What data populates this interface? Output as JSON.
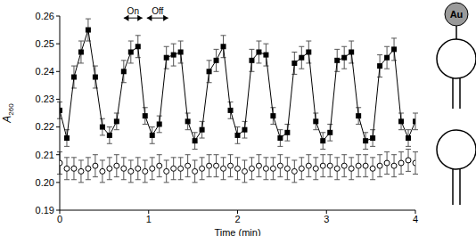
{
  "chart_data": {
    "type": "line",
    "ylabel": "A260",
    "xlabel": "Time (min)",
    "xlim": [
      0,
      4
    ],
    "xticks": [
      0,
      1,
      2,
      3,
      4
    ],
    "ylim": [
      0.19,
      0.26
    ],
    "yticks": [
      0.19,
      {
        "value": 0.2,
        "label": "0.20"
      },
      0.21,
      0.22,
      0.23,
      0.24,
      0.25,
      0.26
    ],
    "x": [
      0,
      0.08,
      0.16,
      0.24,
      0.32,
      0.4,
      0.48,
      0.56,
      0.64,
      0.72,
      0.8,
      0.88,
      0.96,
      1.04,
      1.12,
      1.2,
      1.28,
      1.36,
      1.44,
      1.52,
      1.6,
      1.68,
      1.76,
      1.84,
      1.92,
      2,
      2.08,
      2.16,
      2.24,
      2.32,
      2.4,
      2.48,
      2.56,
      2.64,
      2.72,
      2.8,
      2.88,
      2.96,
      3.04,
      3.12,
      3.2,
      3.28,
      3.36,
      3.44,
      3.52,
      3.6,
      3.68,
      3.76,
      3.84,
      3.92,
      4
    ],
    "series": [
      {
        "color": "#000000",
        "marker": "square",
        "line_style": "solid",
        "values": [
          0.226,
          0.216,
          0.238,
          0.247,
          0.255,
          0.238,
          0.22,
          0.217,
          0.222,
          0.24,
          0.247,
          0.249,
          0.224,
          0.217,
          0.221,
          0.245,
          0.246,
          0.247,
          0.222,
          0.215,
          0.219,
          0.24,
          0.244,
          0.249,
          0.226,
          0.217,
          0.219,
          0.244,
          0.247,
          0.246,
          0.224,
          0.216,
          0.218,
          0.243,
          0.245,
          0.247,
          0.222,
          0.215,
          0.218,
          0.244,
          0.245,
          0.247,
          0.224,
          0.215,
          0.216,
          0.242,
          0.245,
          0.248,
          0.222,
          0.216,
          0.222
        ],
        "errors": [
          0.003,
          0.003,
          0.004,
          0.004,
          0.004,
          0.004,
          0.003,
          0.003,
          0.003,
          0.004,
          0.004,
          0.004,
          0.003,
          0.003,
          0.003,
          0.004,
          0.004,
          0.004,
          0.003,
          0.003,
          0.003,
          0.004,
          0.004,
          0.004,
          0.003,
          0.003,
          0.003,
          0.004,
          0.004,
          0.004,
          0.003,
          0.003,
          0.003,
          0.004,
          0.004,
          0.004,
          0.003,
          0.003,
          0.003,
          0.004,
          0.004,
          0.004,
          0.003,
          0.003,
          0.003,
          0.004,
          0.004,
          0.004,
          0.003,
          0.003,
          0.003
        ]
      },
      {
        "color": "#000000",
        "marker": "circle_open",
        "line_style": "none",
        "values": [
          0.207,
          0.205,
          0.205,
          0.204,
          0.205,
          0.206,
          0.204,
          0.205,
          0.206,
          0.205,
          0.204,
          0.205,
          0.204,
          0.205,
          0.206,
          0.204,
          0.205,
          0.205,
          0.206,
          0.204,
          0.205,
          0.206,
          0.206,
          0.205,
          0.206,
          0.205,
          0.204,
          0.205,
          0.206,
          0.205,
          0.205,
          0.206,
          0.205,
          0.204,
          0.205,
          0.206,
          0.205,
          0.206,
          0.206,
          0.205,
          0.206,
          0.205,
          0.206,
          0.206,
          0.205,
          0.206,
          0.207,
          0.206,
          0.207,
          0.208,
          0.207
        ],
        "errors": [
          0.004,
          0.004,
          0.004,
          0.004,
          0.004,
          0.004,
          0.004,
          0.004,
          0.004,
          0.004,
          0.004,
          0.004,
          0.004,
          0.004,
          0.004,
          0.004,
          0.004,
          0.004,
          0.004,
          0.004,
          0.004,
          0.004,
          0.004,
          0.004,
          0.004,
          0.004,
          0.004,
          0.004,
          0.004,
          0.004,
          0.004,
          0.004,
          0.004,
          0.004,
          0.004,
          0.004,
          0.004,
          0.004,
          0.004,
          0.004,
          0.004,
          0.004,
          0.004,
          0.004,
          0.004,
          0.004,
          0.004,
          0.004,
          0.004,
          0.004,
          0.004
        ]
      }
    ],
    "annotations": [
      {
        "text": "On",
        "x": [
          0.72,
          0.93
        ],
        "y": 0.2593
      },
      {
        "text": "Off",
        "x": [
          0.98,
          1.22
        ],
        "y": 0.2593
      }
    ]
  },
  "diagram": {
    "labels": [
      "Au"
    ]
  }
}
